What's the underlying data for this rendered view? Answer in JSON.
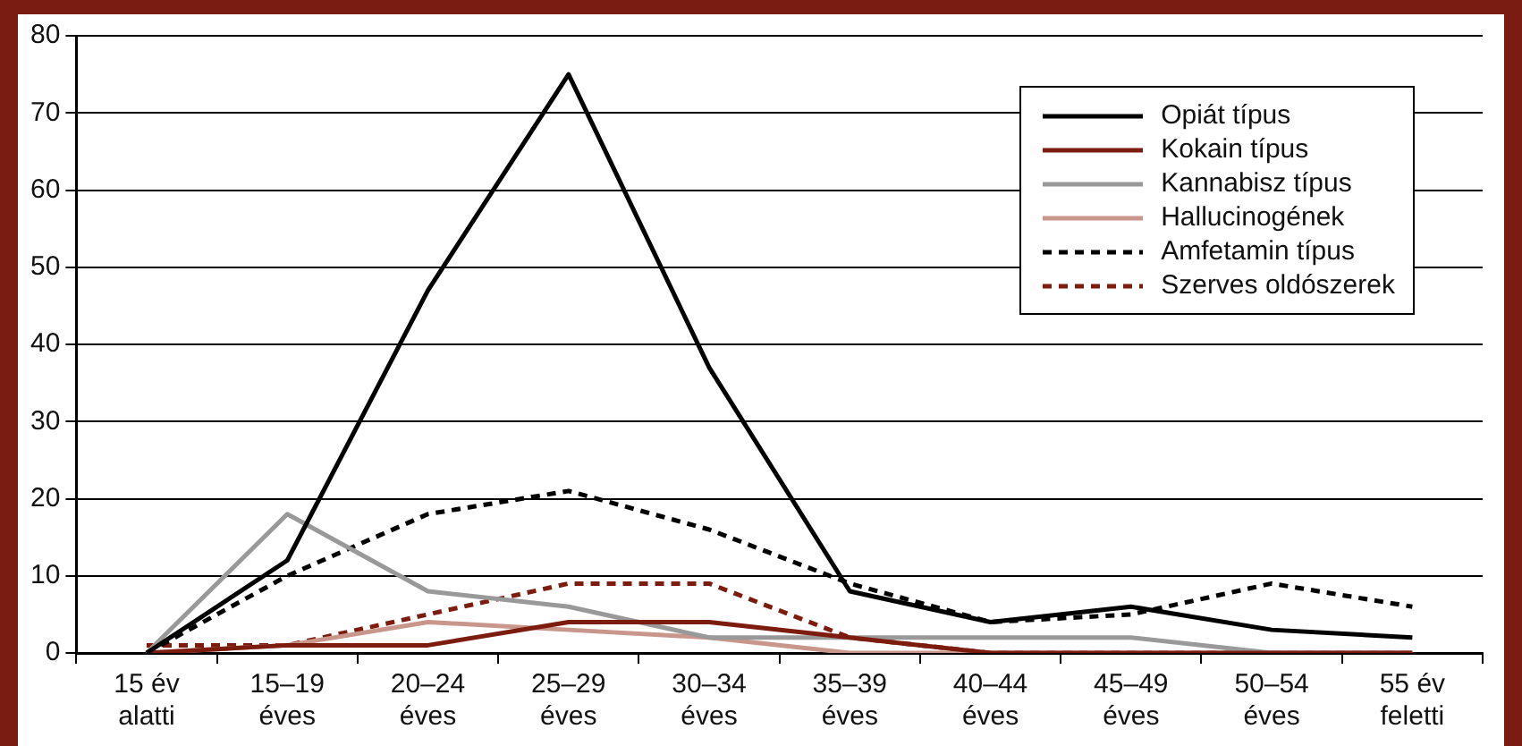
{
  "chart_data": {
    "type": "line",
    "categories": [
      "15 év\nalatti",
      "15–19\néves",
      "20–24\néves",
      "25–29\néves",
      "30–34\néves",
      "35–39\néves",
      "40–44\néves",
      "45–49\néves",
      "50–54\néves",
      "55 év\nfeletti"
    ],
    "series": [
      {
        "name": "Opiát típus",
        "color": "#000000",
        "line_style": "solid",
        "values": [
          0,
          12,
          47,
          75,
          37,
          8,
          4,
          6,
          3,
          2
        ]
      },
      {
        "name": "Kokain típus",
        "color": "#7b1c0e",
        "line_style": "solid",
        "values": [
          0,
          1,
          1,
          4,
          4,
          2,
          0,
          0,
          0,
          0
        ]
      },
      {
        "name": "Kannabisz típus",
        "color": "#999999",
        "line_style": "solid",
        "values": [
          0,
          18,
          8,
          6,
          2,
          2,
          2,
          2,
          0,
          0
        ]
      },
      {
        "name": "Hallucinogének",
        "color": "#c8968a",
        "line_style": "solid",
        "values": [
          0,
          1,
          4,
          3,
          2,
          0,
          0,
          0,
          0,
          0
        ]
      },
      {
        "name": "Amfetamin típus",
        "color": "#000000",
        "line_style": "dashed",
        "values": [
          0,
          10,
          18,
          21,
          16,
          9,
          4,
          5,
          9,
          6
        ]
      },
      {
        "name": "Szerves oldószerek",
        "color": "#7b1c0e",
        "line_style": "dashed",
        "values": [
          1,
          1,
          5,
          9,
          9,
          2,
          0,
          0,
          0,
          0
        ]
      }
    ],
    "ylim": [
      0,
      80
    ],
    "yticks": [
      0,
      10,
      20,
      30,
      40,
      50,
      60,
      70,
      80
    ],
    "grid": "y",
    "legend": "top right",
    "marker": "none"
  }
}
